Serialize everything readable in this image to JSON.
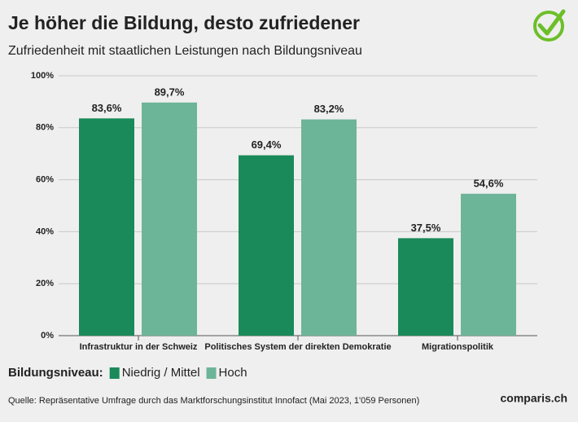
{
  "chart_data": {
    "type": "bar",
    "title": "Je höher die Bildung, desto zufriedener",
    "subtitle": "Zufriedenheit mit staatlichen Leistungen nach Bildungsniveau",
    "categories": [
      "Infrastruktur in der Schweiz",
      "Politisches System der direkten Demokratie",
      "Migrationspolitik"
    ],
    "series": [
      {
        "name": "Niedrig / Mittel",
        "color": "#1a8a5a",
        "values": [
          83.6,
          69.4,
          37.5
        ],
        "value_labels": [
          "83,6%",
          "69,4%",
          "37,5%"
        ]
      },
      {
        "name": "Hoch",
        "color": "#6db598",
        "values": [
          89.7,
          83.2,
          54.6
        ],
        "value_labels": [
          "89,7%",
          "83,2%",
          "54,6%"
        ]
      }
    ],
    "ylim": [
      0,
      100
    ],
    "yticks": [
      {
        "value": 0,
        "label": "0%"
      },
      {
        "value": 20,
        "label": "20%"
      },
      {
        "value": 40,
        "label": "40%"
      },
      {
        "value": 60,
        "label": "60%"
      },
      {
        "value": 80,
        "label": "80%"
      },
      {
        "value": 100,
        "label": "100%"
      }
    ],
    "grid": true,
    "legend_title": "Bildungsniveau:",
    "source": "Quelle: Repräsentative Umfrage durch das Marktforschungsinstitut Innofact (Mai 2023, 1'059 Personen)",
    "brand": "comparis.ch"
  }
}
